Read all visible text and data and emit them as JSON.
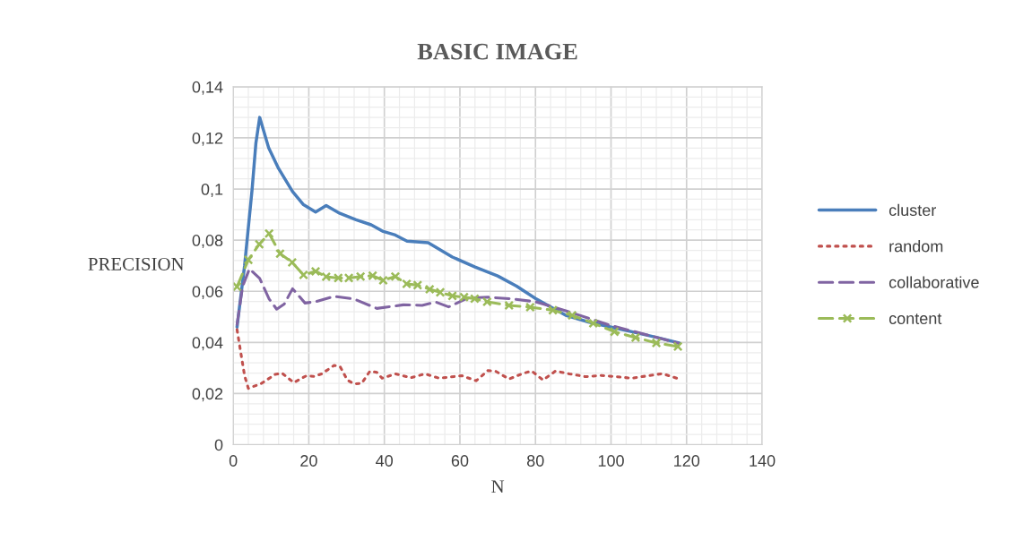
{
  "chart_data": {
    "type": "line",
    "title": "BASIC IMAGE",
    "xlabel": "N",
    "ylabel": "PRECISION",
    "xlim": [
      0,
      140
    ],
    "xticks": [
      0,
      20,
      40,
      60,
      80,
      100,
      120,
      140
    ],
    "ylim": [
      0,
      0.14
    ],
    "yticks": [
      0,
      {
        "value": 0.02,
        "label": "0,02"
      },
      {
        "value": 0.04,
        "label": "0,04"
      },
      {
        "value": 0.06,
        "label": "0,06"
      },
      {
        "value": 0.08,
        "label": "0,08"
      },
      {
        "value": 0.1,
        "label": "0,1"
      },
      {
        "value": 0.12,
        "label": "0,12"
      },
      {
        "value": 0.14,
        "label": "0,14"
      }
    ],
    "grid": true,
    "legend": "right",
    "series": [
      {
        "name": "cluster",
        "color": "#4a7ebb",
        "line_style": "solid",
        "marker": "none",
        "x": [
          1,
          3,
          5,
          6,
          7,
          9.4,
          12,
          15.7,
          18.5,
          21.8,
          24.6,
          28.2,
          32.5,
          36.5,
          39.7,
          42.9,
          46,
          51.6,
          58,
          64,
          70,
          75,
          80,
          88,
          94,
          100,
          106,
          112,
          118
        ],
        "values": [
          0.046,
          0.07,
          0.1,
          0.118,
          0.128,
          0.116,
          0.108,
          0.099,
          0.094,
          0.091,
          0.0935,
          0.0905,
          0.088,
          0.086,
          0.0834,
          0.082,
          0.0796,
          0.079,
          0.0734,
          0.0695,
          0.066,
          0.062,
          0.0572,
          0.0506,
          0.048,
          0.046,
          0.044,
          0.042,
          0.0398
        ]
      },
      {
        "name": "random",
        "color": "#c0504d",
        "line_style": "dotted",
        "marker": "none",
        "x": [
          1,
          2,
          3,
          4,
          7.5,
          11.1,
          12.9,
          16,
          19.4,
          21.4,
          23.4,
          26.7,
          28.3,
          30.2,
          32,
          34,
          36.2,
          38,
          39.4,
          43,
          47,
          50.8,
          54.5,
          60.5,
          64.3,
          67.4,
          69.5,
          73,
          77,
          79,
          82,
          85.3,
          89,
          93.3,
          97.4,
          101.4,
          105.4,
          109.5,
          113.6,
          117.4
        ],
        "values": [
          0.045,
          0.036,
          0.027,
          0.022,
          0.024,
          0.0275,
          0.028,
          0.0243,
          0.027,
          0.0267,
          0.0277,
          0.031,
          0.0305,
          0.0253,
          0.0238,
          0.024,
          0.0288,
          0.0283,
          0.026,
          0.0277,
          0.0262,
          0.0277,
          0.026,
          0.027,
          0.025,
          0.029,
          0.0287,
          0.0257,
          0.028,
          0.0288,
          0.0253,
          0.0288,
          0.0277,
          0.0266,
          0.0271,
          0.0266,
          0.026,
          0.0269,
          0.0278,
          0.026
        ]
      },
      {
        "name": "collaborative",
        "color": "#8064a2",
        "line_style": "dashed",
        "marker": "none",
        "x": [
          1,
          2.5,
          4.3,
          7,
          9.5,
          11.5,
          13.5,
          15.7,
          19,
          22,
          26.7,
          31.9,
          38,
          45,
          50,
          53.6,
          57,
          62,
          67.4,
          74,
          80,
          88,
          94,
          100,
          106,
          112,
          118
        ],
        "values": [
          0.047,
          0.062,
          0.0688,
          0.065,
          0.057,
          0.053,
          0.055,
          0.061,
          0.0554,
          0.056,
          0.058,
          0.057,
          0.0533,
          0.0547,
          0.0545,
          0.0558,
          0.0539,
          0.0573,
          0.0577,
          0.057,
          0.0559,
          0.0524,
          0.0495,
          0.0466,
          0.0443,
          0.042,
          0.0396
        ]
      },
      {
        "name": "content",
        "color": "#9bbb59",
        "line_style": "dashed",
        "marker": "cross",
        "x": [
          1,
          4,
          6.9,
          9.5,
          12.4,
          15.6,
          18.6,
          21.8,
          24.6,
          27.8,
          30.6,
          33.7,
          36.9,
          39.7,
          42.9,
          45.9,
          48.8,
          52,
          54.8,
          58,
          61.1,
          63.9,
          67.2,
          73,
          78.6,
          84.6,
          89.7,
          95.3,
          100.9,
          106.5,
          112,
          117.7
        ],
        "values": [
          0.0618,
          0.0723,
          0.0784,
          0.0826,
          0.0747,
          0.0713,
          0.0664,
          0.0678,
          0.0657,
          0.0652,
          0.0652,
          0.0658,
          0.0661,
          0.0643,
          0.0658,
          0.0629,
          0.0624,
          0.0608,
          0.0596,
          0.0582,
          0.0577,
          0.0571,
          0.0559,
          0.0545,
          0.0538,
          0.0526,
          0.0506,
          0.0475,
          0.0442,
          0.0419,
          0.0398,
          0.0384
        ]
      }
    ]
  }
}
